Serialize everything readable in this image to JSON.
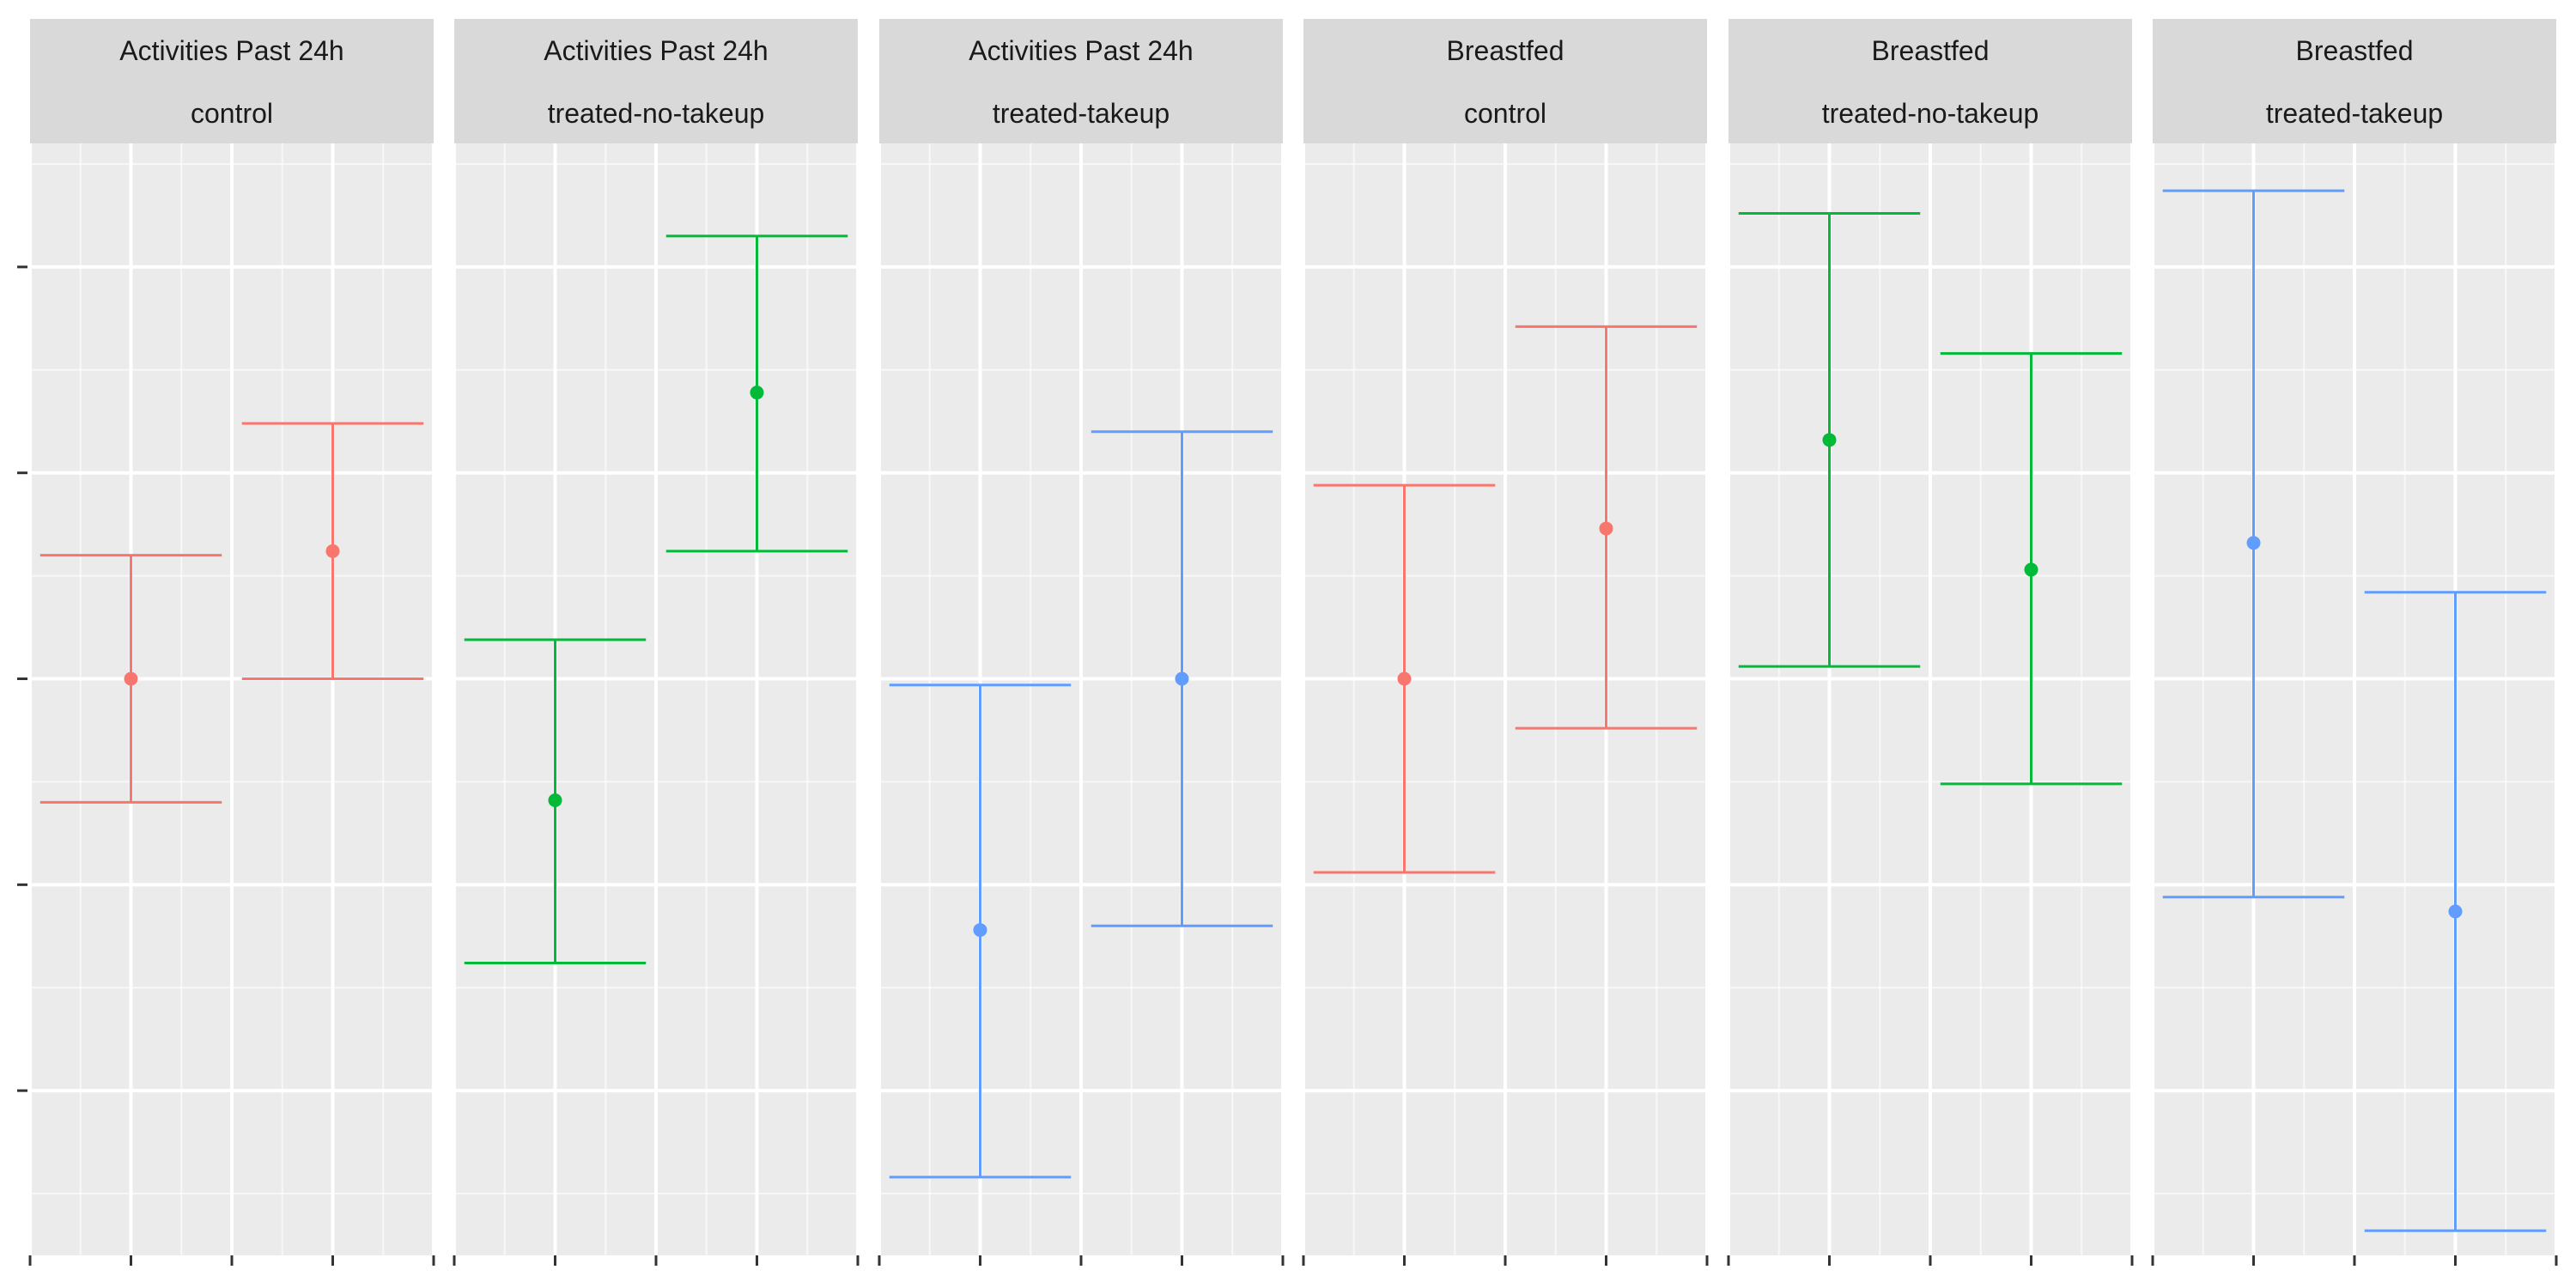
{
  "chart_data": {
    "type": "errorbar",
    "facets": [
      {
        "title_line1": "Activities Past 24h",
        "title_line2": "control",
        "color": "#F8766D",
        "points": [
          {
            "x": 1,
            "y": 0.0,
            "low": -0.6,
            "high": 0.6
          },
          {
            "x": 2,
            "y": 0.62,
            "low": 0.0,
            "high": 1.24
          }
        ]
      },
      {
        "title_line1": "Activities Past 24h",
        "title_line2": "treated-no-takeup",
        "color": "#00BA38",
        "points": [
          {
            "x": 1,
            "y": -0.59,
            "low": -1.38,
            "high": 0.19
          },
          {
            "x": 2,
            "y": 1.39,
            "low": 0.62,
            "high": 2.15
          }
        ]
      },
      {
        "title_line1": "Activities Past 24h",
        "title_line2": "treated-takeup",
        "color": "#619CFF",
        "points": [
          {
            "x": 1,
            "y": -1.22,
            "low": -2.42,
            "high": -0.03
          },
          {
            "x": 2,
            "y": 0.0,
            "low": -1.2,
            "high": 1.2
          }
        ]
      },
      {
        "title_line1": "Breastfed",
        "title_line2": "control",
        "color": "#F8766D",
        "points": [
          {
            "x": 1,
            "y": 0.0,
            "low": -0.94,
            "high": 0.94
          },
          {
            "x": 2,
            "y": 0.73,
            "low": -0.24,
            "high": 1.71
          }
        ]
      },
      {
        "title_line1": "Breastfed",
        "title_line2": "treated-no-takeup",
        "color": "#00BA38",
        "points": [
          {
            "x": 1,
            "y": 1.16,
            "low": 0.06,
            "high": 2.26
          },
          {
            "x": 2,
            "y": 0.53,
            "low": -0.51,
            "high": 1.58
          }
        ]
      },
      {
        "title_line1": "Breastfed",
        "title_line2": "treated-takeup",
        "color": "#619CFF",
        "points": [
          {
            "x": 1,
            "y": 0.66,
            "low": -1.06,
            "high": 2.37
          },
          {
            "x": 2,
            "y": -1.13,
            "low": -2.68,
            "high": 0.42
          }
        ]
      }
    ],
    "xlim": [
      0.5,
      2.5
    ],
    "ylim": [
      -2.8,
      2.6
    ],
    "y_major_ticks": [
      -2,
      -1,
      0,
      1,
      2
    ],
    "x_major_ticks": [
      0.5,
      1,
      1.5,
      2,
      2.5
    ],
    "grid": true,
    "panel_background": "#EBEBEB",
    "strip_background": "#D9D9D9",
    "grid_color": "#FFFFFF"
  }
}
